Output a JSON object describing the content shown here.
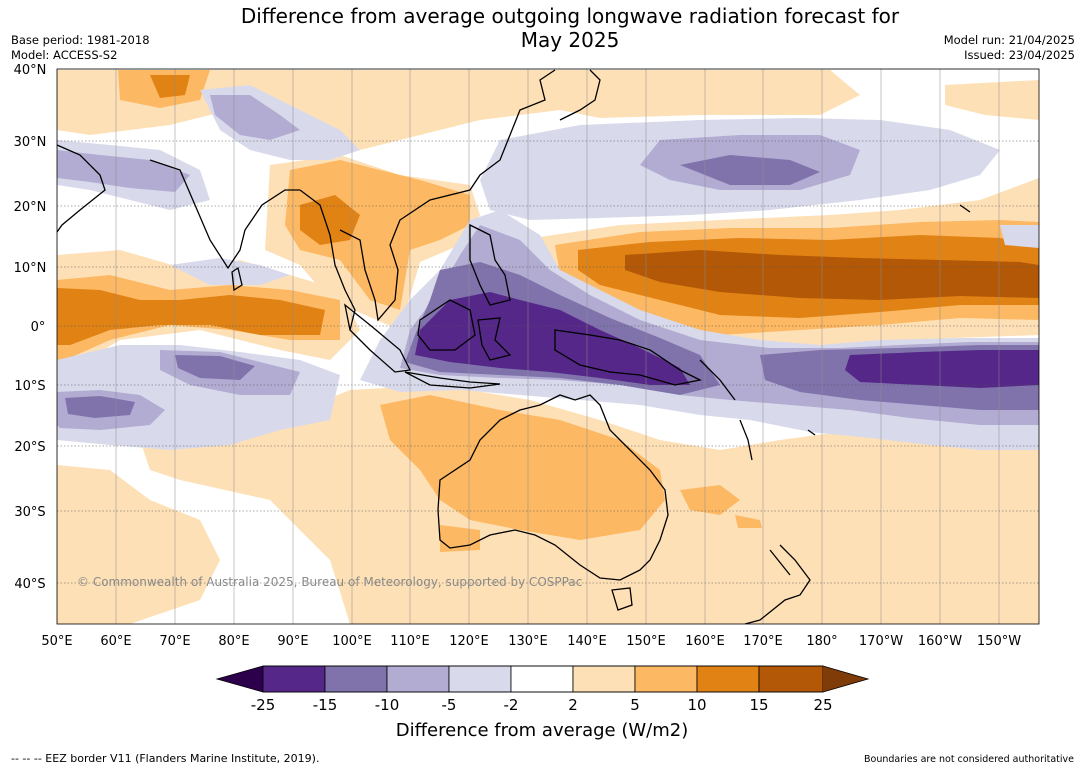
{
  "title": {
    "line1": "Difference from average outgoing longwave radiation forecast for",
    "line2": "May 2025"
  },
  "meta_left": {
    "base_period": "Base period: 1981-2018",
    "model": "Model: ACCESS-S2"
  },
  "meta_right": {
    "model_run": "Model run: 21/04/2025",
    "issued": "Issued: 23/04/2025"
  },
  "lat_labels": [
    "40°N",
    "30°N",
    "20°N",
    "10°N",
    "0°",
    "10°S",
    "20°S",
    "30°S",
    "40°S"
  ],
  "lon_labels": [
    "50°E",
    "60°E",
    "70°E",
    "80°E",
    "90°E",
    "100°E",
    "110°E",
    "120°E",
    "130°E",
    "140°E",
    "150°E",
    "160°E",
    "170°E",
    "180°",
    "170°W",
    "160°W",
    "150°W"
  ],
  "copyright": "© Commonwealth of Australia 2025, Bureau of Meteorology, supported by COSPPac",
  "colorbar": {
    "title": "Difference from average (W/m2)",
    "ticks": [
      "-25",
      "-15",
      "-10",
      "-5",
      "-2",
      "2",
      "5",
      "10",
      "15",
      "25"
    ],
    "colors": {
      "below_min": "#2d004b",
      "c1": "#542788",
      "c2": "#8073ac",
      "c3": "#b2abd2",
      "c4": "#d8daeb",
      "c5": "#ffffff",
      "c6": "#fee0b6",
      "c7": "#fdb863",
      "c8": "#e08214",
      "c9": "#b35806",
      "above_max": "#7f3b08"
    }
  },
  "footer": {
    "legend": "--  --  -- EEZ border V11 (Flanders Marine Institute, 2019).",
    "disclaimer": "Boundaries are not considered authoritative"
  }
}
